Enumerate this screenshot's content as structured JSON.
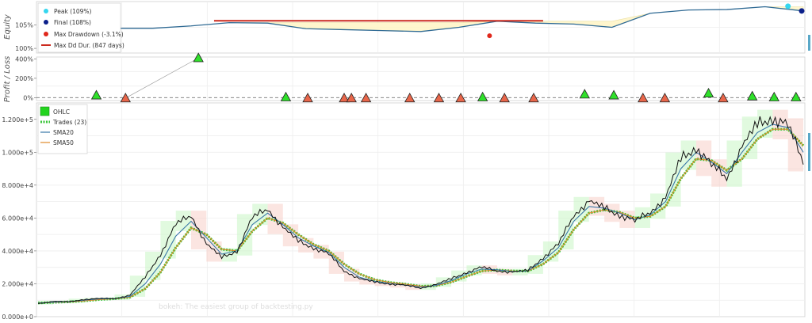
{
  "panels": {
    "equity": {
      "ylabel": "Equity",
      "ticks": [
        "100%",
        "105%"
      ],
      "legend": [
        {
          "label": "Peak (109%)",
          "color": "#35d6ef",
          "shape": "circle"
        },
        {
          "label": "Final (108%)",
          "color": "#0b1f8a",
          "shape": "circle"
        },
        {
          "label": "Max Drawdown (-3.1%)",
          "color": "#e0281c",
          "shape": "circle"
        },
        {
          "label": "Max Dd Dur. (847 days)",
          "color": "#cc2a1e",
          "shape": "line"
        }
      ]
    },
    "pnl": {
      "ylabel": "Profit / Loss",
      "ticks": [
        "400%",
        "200%",
        "0%"
      ]
    },
    "ohlc": {
      "ticks": [
        "0.000e+0",
        "2.000e+4",
        "4.000e+4",
        "6.000e+4",
        "8.000e+4",
        "1.000e+5",
        "1.200e+5"
      ],
      "legend": [
        {
          "label": "OHLC",
          "color": "#22d41e",
          "shape": "square"
        },
        {
          "label": "Trades (23)",
          "color": "#3ac53a",
          "shape": "dash"
        },
        {
          "label": "SMA20",
          "color": "#3a78a8",
          "shape": "line"
        },
        {
          "label": "SMA50",
          "color": "#e08a2a",
          "shape": "line"
        }
      ]
    }
  },
  "watermark": "bokeh: The easiest group of backtesting.py",
  "chart_data": [
    {
      "type": "line",
      "name": "equity",
      "ylabel": "Equity",
      "ylim": [
        99,
        110
      ],
      "x": [
        0,
        5,
        10,
        15,
        20,
        25,
        30,
        35,
        40,
        45,
        50,
        55,
        60,
        65,
        70,
        75,
        80,
        85,
        90,
        95,
        100
      ],
      "y": [
        100,
        100,
        104.3,
        104.3,
        104.8,
        105.5,
        105.4,
        104.2,
        104.0,
        103.8,
        103.6,
        104.5,
        105.8,
        105.4,
        105.2,
        104.5,
        107.5,
        108.2,
        108.3,
        108.9,
        108.0
      ],
      "markers": {
        "peak": {
          "x": 98,
          "y": 109
        },
        "final": {
          "x": 100,
          "y": 108
        },
        "max_drawdown": {
          "x": 59,
          "y": 102.7
        }
      },
      "max_dd_duration": {
        "x_start": 23,
        "x_end": 66,
        "y": 105.9
      }
    },
    {
      "type": "scatter",
      "name": "trades_pnl",
      "ylabel": "Profit / Loss",
      "ylim": [
        -30,
        420
      ],
      "points": [
        {
          "x": 8,
          "y": 25,
          "win": true
        },
        {
          "x": 12,
          "y": -5,
          "win": false
        },
        {
          "x": 22,
          "y": 410,
          "win": true
        },
        {
          "x": 34,
          "y": 5,
          "win": true
        },
        {
          "x": 37,
          "y": -5,
          "win": false
        },
        {
          "x": 42,
          "y": -5,
          "win": false
        },
        {
          "x": 43,
          "y": -5,
          "win": false
        },
        {
          "x": 45,
          "y": -5,
          "win": false
        },
        {
          "x": 51,
          "y": -5,
          "win": false
        },
        {
          "x": 55,
          "y": -5,
          "win": false
        },
        {
          "x": 58,
          "y": -5,
          "win": false
        },
        {
          "x": 61,
          "y": 5,
          "win": true
        },
        {
          "x": 64,
          "y": -5,
          "win": false
        },
        {
          "x": 68,
          "y": -5,
          "win": false
        },
        {
          "x": 75,
          "y": 35,
          "win": true
        },
        {
          "x": 79,
          "y": 25,
          "win": true
        },
        {
          "x": 83,
          "y": -5,
          "win": false
        },
        {
          "x": 86,
          "y": -5,
          "win": false
        },
        {
          "x": 92,
          "y": 45,
          "win": true
        },
        {
          "x": 94,
          "y": -5,
          "win": false
        },
        {
          "x": 98,
          "y": 15,
          "win": true
        },
        {
          "x": 101,
          "y": 5,
          "win": true
        },
        {
          "x": 104,
          "y": 5,
          "win": true
        }
      ]
    },
    {
      "type": "line",
      "name": "price_ohlc",
      "ylim": [
        0,
        130000
      ],
      "x": [
        0,
        2,
        4,
        6,
        8,
        10,
        12,
        14,
        16,
        18,
        20,
        22,
        24,
        26,
        28,
        30,
        32,
        34,
        36,
        38,
        40,
        42,
        44,
        46,
        48,
        50,
        52,
        54,
        56,
        58,
        60,
        62,
        64,
        66,
        68,
        70,
        72,
        74,
        76,
        78,
        80,
        82,
        84,
        86,
        88,
        90,
        92,
        94,
        96,
        98,
        100
      ],
      "series": [
        {
          "name": "OHLC",
          "values": [
            8000,
            9200,
            9000,
            10500,
            11000,
            11000,
            13000,
            24000,
            38000,
            56000,
            62000,
            44000,
            36000,
            40000,
            60000,
            66000,
            54000,
            46000,
            42000,
            38000,
            28000,
            23000,
            21000,
            20000,
            19000,
            17500,
            19500,
            23000,
            27000,
            30000,
            28000,
            27000,
            28000,
            36000,
            44000,
            62000,
            70000,
            66000,
            62000,
            58000,
            64000,
            72000,
            96000,
            103000,
            92000,
            85000,
            103000,
            117000,
            121000,
            116000,
            95000
          ]
        },
        {
          "name": "SMA20",
          "values": [
            8200,
            8800,
            9100,
            10000,
            10800,
            11000,
            12300,
            20000,
            32000,
            49000,
            58000,
            48000,
            38000,
            40000,
            56000,
            63000,
            56000,
            48000,
            43000,
            39000,
            30000,
            24000,
            21500,
            20200,
            19200,
            18000,
            19000,
            22000,
            26000,
            29000,
            28500,
            27500,
            27800,
            34000,
            42000,
            58000,
            67000,
            66000,
            63000,
            59000,
            62000,
            70000,
            90000,
            100000,
            94000,
            87000,
            100000,
            112000,
            117000,
            115000,
            100000
          ]
        },
        {
          "name": "SMA50",
          "values": [
            8300,
            8700,
            9000,
            9600,
            10400,
            10900,
            11800,
            17000,
            27000,
            42000,
            54000,
            50000,
            41000,
            40000,
            52000,
            60000,
            57000,
            50000,
            44000,
            40000,
            32000,
            26000,
            22500,
            20800,
            19800,
            18500,
            18800,
            21000,
            24500,
            27800,
            28400,
            27800,
            27700,
            32000,
            39000,
            53000,
            63000,
            65000,
            63500,
            60000,
            61000,
            67000,
            84000,
            96000,
            95000,
            89000,
            96000,
            108000,
            114000,
            114000,
            104000
          ]
        }
      ]
    }
  ]
}
